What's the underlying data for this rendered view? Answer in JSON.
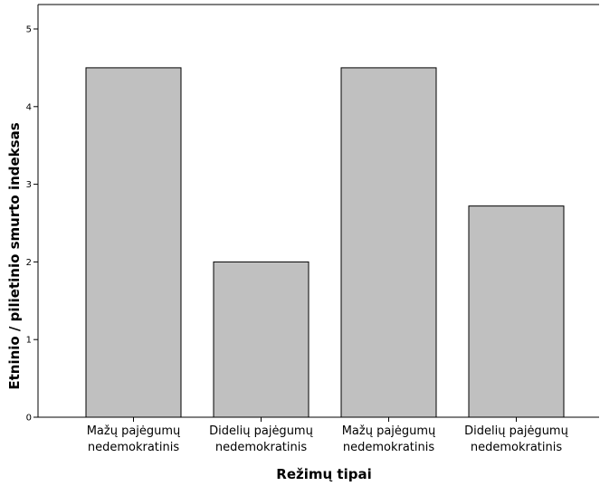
{
  "chart_data": {
    "type": "bar",
    "title": "",
    "xlabel": "Režimų tipai",
    "ylabel": "Etninio / pilietinio smurto indeksas",
    "categories": [
      "Mažų pajėgumų nedemokratinis",
      "Didelių pajėgumų nedemokratinis",
      "Mažų pajėgumų nedemokratinis",
      "Didelių pajėgumų nedemokratinis"
    ],
    "category_lines": [
      [
        "Mažų pajėgumų",
        "nedemokratinis"
      ],
      [
        "Didelių pajėgumų",
        "nedemokratinis"
      ],
      [
        "Mažų pajėgumų",
        "nedemokratinis"
      ],
      [
        "Didelių pajėgumų",
        "nedemokratinis"
      ]
    ],
    "values": [
      4.5,
      2.0,
      4.5,
      2.72
    ],
    "ylim": [
      0,
      5
    ],
    "yticks": [
      "0",
      "1",
      "2",
      "3",
      "4",
      "5"
    ],
    "grid": false,
    "colors": {
      "bar_fill": "#c0c0c0",
      "bar_stroke": "#000000",
      "frame": "#000000"
    }
  }
}
